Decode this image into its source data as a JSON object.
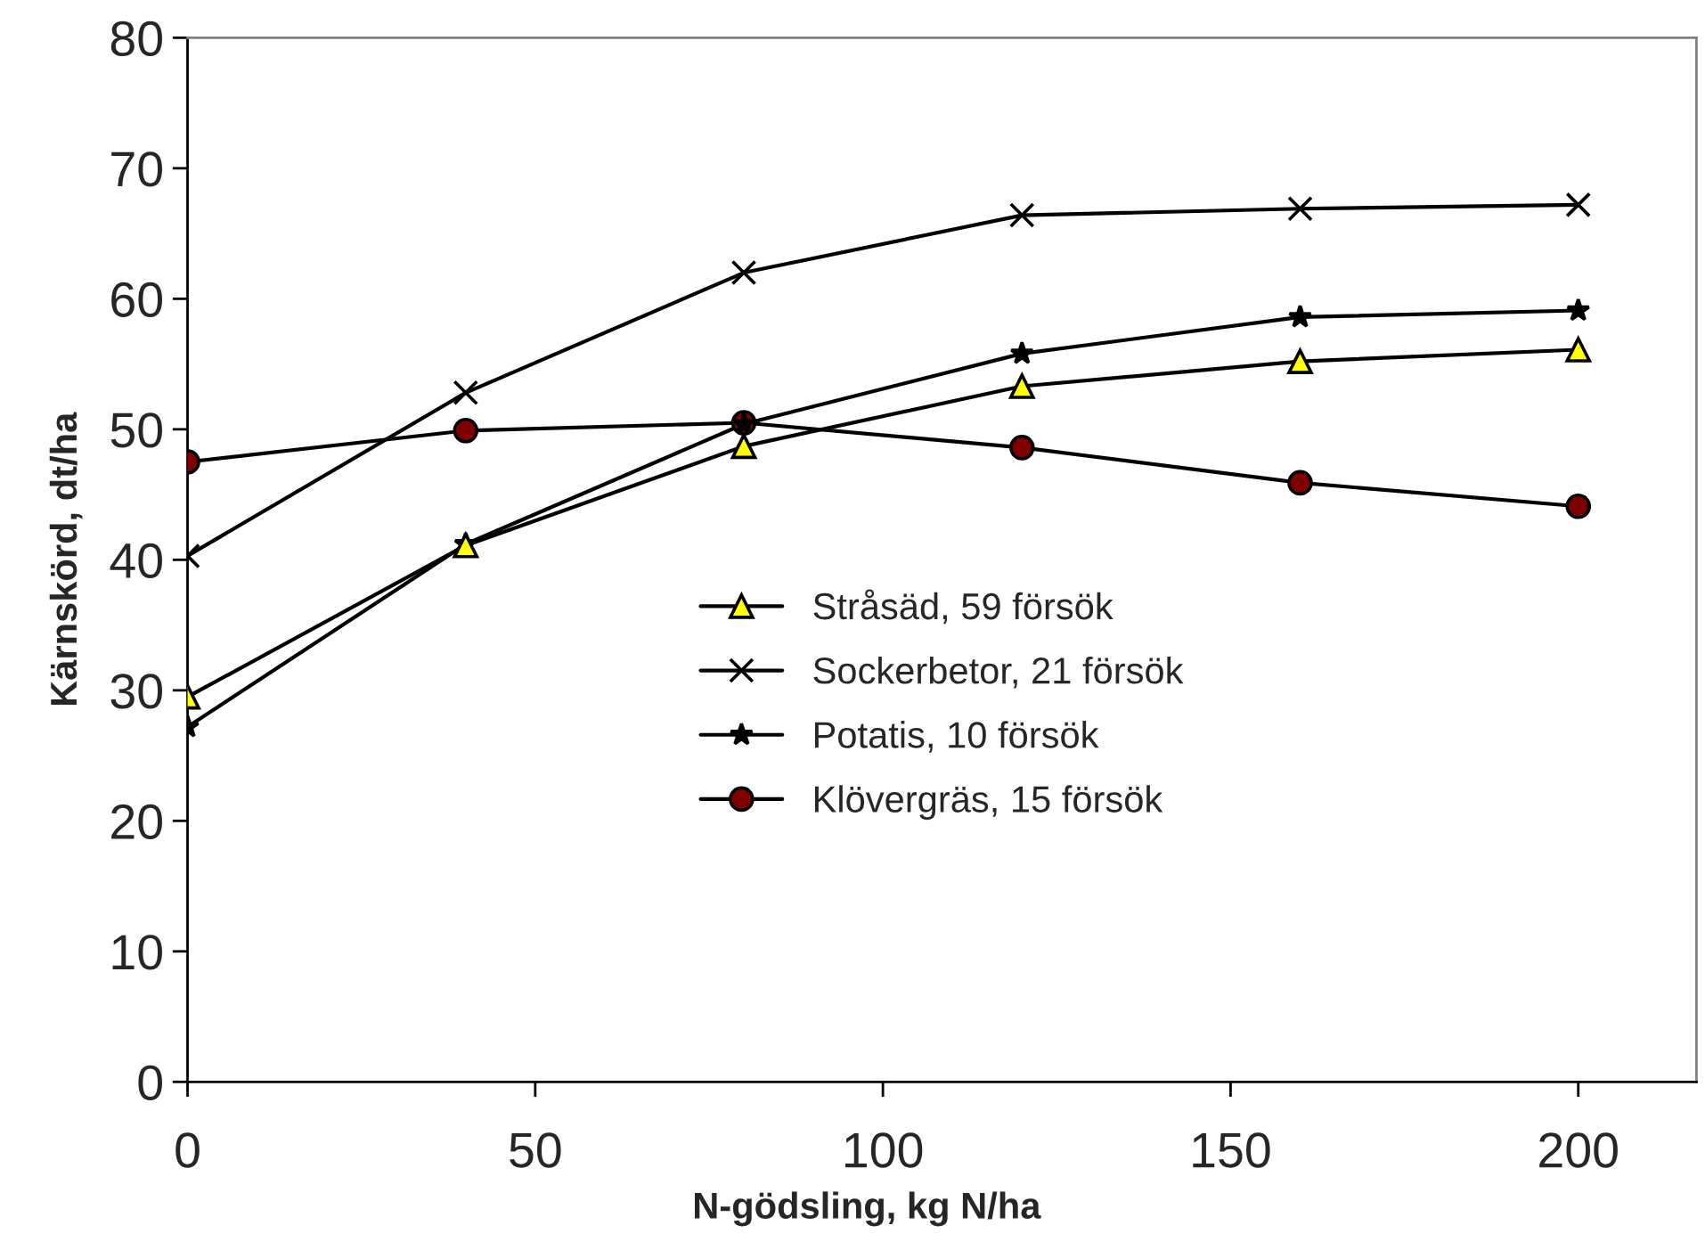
{
  "chart_data": {
    "type": "line",
    "xlabel": "N-gödsling, kg N/ha",
    "ylabel": "Kärnskörd, dt/ha",
    "x": [
      0,
      40,
      80,
      120,
      160,
      200
    ],
    "series": [
      {
        "name": "Stråsäd, 59 försök",
        "color": "#ffff00",
        "marker": "triangle",
        "values": [
          29.5,
          41.1,
          48.7,
          53.3,
          55.2,
          56.1
        ]
      },
      {
        "name": "Sockerbetor, 21 försök",
        "color": "#000000",
        "marker": "cross",
        "values": [
          40.3,
          52.8,
          62.0,
          66.4,
          66.9,
          67.2
        ]
      },
      {
        "name": "Potatis, 10 försök",
        "color": "#000000",
        "marker": "star",
        "values": [
          27.2,
          41.2,
          50.4,
          55.8,
          58.6,
          59.1
        ]
      },
      {
        "name": "Klövergräs, 15 försök",
        "color": "#800000",
        "marker": "circle",
        "values": [
          47.5,
          49.9,
          50.5,
          48.6,
          45.9,
          44.1
        ]
      }
    ],
    "xlim": [
      0,
      217
    ],
    "xticks": [
      0,
      50,
      100,
      150,
      200
    ],
    "ylim": [
      0,
      80
    ],
    "yticks": [
      0,
      10,
      20,
      30,
      40,
      50,
      60,
      70,
      80
    ],
    "grid": false,
    "legend": "center"
  }
}
